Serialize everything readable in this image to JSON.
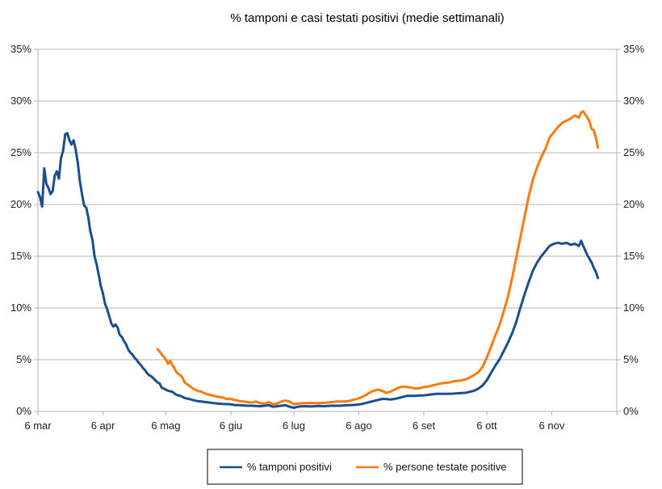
{
  "chart_data": {
    "type": "line",
    "title": "% tamponi e casi testati positivi (medie settimanali)",
    "xlabel": "",
    "ylabel": "",
    "x_unit": "days since 6 mar",
    "x_ticks": [
      {
        "label": "6 mar",
        "x": 0
      },
      {
        "label": "6 apr",
        "x": 31
      },
      {
        "label": "6 mag",
        "x": 61
      },
      {
        "label": "6 giu",
        "x": 92
      },
      {
        "label": "6 lug",
        "x": 122
      },
      {
        "label": "6 ago",
        "x": 153
      },
      {
        "label": "6 set",
        "x": 184
      },
      {
        "label": "6 ott",
        "x": 214
      },
      {
        "label": "6 nov",
        "x": 245
      }
    ],
    "xlim": [
      0,
      276
    ],
    "ylim": [
      0,
      35
    ],
    "y_ticks": [
      0,
      5,
      10,
      15,
      20,
      25,
      30,
      35
    ],
    "y_tick_labels": [
      "0%",
      "5%",
      "10%",
      "15%",
      "20%",
      "25%",
      "30%",
      "35%"
    ],
    "grid": "horizontal",
    "legend_position": "bottom",
    "series": [
      {
        "name": "% tamponi positivi",
        "color": "#1a4f8b",
        "points": [
          [
            0,
            21.2
          ],
          [
            1,
            20.7
          ],
          [
            2,
            19.8
          ],
          [
            3,
            23.5
          ],
          [
            4,
            22.0
          ],
          [
            5,
            21.6
          ],
          [
            6,
            21.0
          ],
          [
            7,
            21.3
          ],
          [
            8,
            22.8
          ],
          [
            9,
            23.2
          ],
          [
            10,
            22.5
          ],
          [
            11,
            24.5
          ],
          [
            12,
            25.2
          ],
          [
            13,
            26.8
          ],
          [
            14,
            26.9
          ],
          [
            15,
            26.2
          ],
          [
            16,
            25.8
          ],
          [
            17,
            26.2
          ],
          [
            18,
            25.3
          ],
          [
            19,
            24.0
          ],
          [
            20,
            22.2
          ],
          [
            21,
            21.0
          ],
          [
            22,
            19.9
          ],
          [
            23,
            19.7
          ],
          [
            24,
            18.8
          ],
          [
            25,
            17.4
          ],
          [
            26,
            16.6
          ],
          [
            27,
            15.0
          ],
          [
            28,
            14.2
          ],
          [
            29,
            13.2
          ],
          [
            30,
            12.1
          ],
          [
            31,
            11.4
          ],
          [
            32,
            10.4
          ],
          [
            33,
            9.9
          ],
          [
            34,
            9.2
          ],
          [
            35,
            8.5
          ],
          [
            36,
            8.2
          ],
          [
            37,
            8.4
          ],
          [
            38,
            8.1
          ],
          [
            39,
            7.4
          ],
          [
            40,
            7.2
          ],
          [
            41,
            6.8
          ],
          [
            42,
            6.5
          ],
          [
            43,
            6.0
          ],
          [
            44,
            5.7
          ],
          [
            45,
            5.5
          ],
          [
            46,
            5.2
          ],
          [
            47,
            5.0
          ],
          [
            48,
            4.7
          ],
          [
            49,
            4.5
          ],
          [
            50,
            4.2
          ],
          [
            51,
            4.0
          ],
          [
            52,
            3.7
          ],
          [
            53,
            3.5
          ],
          [
            54,
            3.4
          ],
          [
            55,
            3.2
          ],
          [
            56,
            3.0
          ],
          [
            57,
            2.8
          ],
          [
            58,
            2.7
          ],
          [
            59,
            2.3
          ],
          [
            60,
            2.2
          ],
          [
            62,
            2.0
          ],
          [
            64,
            1.9
          ],
          [
            66,
            1.6
          ],
          [
            68,
            1.5
          ],
          [
            70,
            1.3
          ],
          [
            72,
            1.2
          ],
          [
            74,
            1.1
          ],
          [
            76,
            1.0
          ],
          [
            78,
            0.95
          ],
          [
            80,
            0.9
          ],
          [
            82,
            0.85
          ],
          [
            84,
            0.8
          ],
          [
            86,
            0.75
          ],
          [
            88,
            0.72
          ],
          [
            90,
            0.7
          ],
          [
            92,
            0.68
          ],
          [
            94,
            0.62
          ],
          [
            96,
            0.6
          ],
          [
            98,
            0.58
          ],
          [
            100,
            0.55
          ],
          [
            102,
            0.55
          ],
          [
            104,
            0.52
          ],
          [
            106,
            0.5
          ],
          [
            108,
            0.55
          ],
          [
            110,
            0.6
          ],
          [
            112,
            0.45
          ],
          [
            114,
            0.5
          ],
          [
            116,
            0.55
          ],
          [
            118,
            0.6
          ],
          [
            120,
            0.45
          ],
          [
            122,
            0.35
          ],
          [
            124,
            0.45
          ],
          [
            126,
            0.5
          ],
          [
            128,
            0.5
          ],
          [
            130,
            0.48
          ],
          [
            132,
            0.5
          ],
          [
            134,
            0.52
          ],
          [
            136,
            0.5
          ],
          [
            138,
            0.52
          ],
          [
            140,
            0.55
          ],
          [
            142,
            0.55
          ],
          [
            144,
            0.55
          ],
          [
            146,
            0.58
          ],
          [
            148,
            0.6
          ],
          [
            150,
            0.62
          ],
          [
            152,
            0.65
          ],
          [
            154,
            0.7
          ],
          [
            156,
            0.8
          ],
          [
            158,
            0.9
          ],
          [
            160,
            1.0
          ],
          [
            162,
            1.1
          ],
          [
            164,
            1.2
          ],
          [
            166,
            1.2
          ],
          [
            168,
            1.15
          ],
          [
            170,
            1.2
          ],
          [
            172,
            1.3
          ],
          [
            174,
            1.4
          ],
          [
            176,
            1.5
          ],
          [
            178,
            1.5
          ],
          [
            180,
            1.5
          ],
          [
            182,
            1.55
          ],
          [
            184,
            1.55
          ],
          [
            186,
            1.6
          ],
          [
            188,
            1.65
          ],
          [
            190,
            1.7
          ],
          [
            192,
            1.7
          ],
          [
            194,
            1.7
          ],
          [
            196,
            1.7
          ],
          [
            198,
            1.72
          ],
          [
            200,
            1.75
          ],
          [
            202,
            1.78
          ],
          [
            204,
            1.8
          ],
          [
            206,
            1.9
          ],
          [
            208,
            2.0
          ],
          [
            210,
            2.2
          ],
          [
            212,
            2.5
          ],
          [
            214,
            3.0
          ],
          [
            216,
            3.7
          ],
          [
            218,
            4.4
          ],
          [
            220,
            5.0
          ],
          [
            222,
            5.8
          ],
          [
            224,
            6.6
          ],
          [
            226,
            7.5
          ],
          [
            228,
            8.6
          ],
          [
            230,
            10.0
          ],
          [
            232,
            11.3
          ],
          [
            234,
            12.5
          ],
          [
            236,
            13.6
          ],
          [
            238,
            14.4
          ],
          [
            240,
            15.0
          ],
          [
            242,
            15.5
          ],
          [
            244,
            16.0
          ],
          [
            246,
            16.2
          ],
          [
            248,
            16.3
          ],
          [
            250,
            16.2
          ],
          [
            252,
            16.3
          ],
          [
            254,
            16.1
          ],
          [
            256,
            16.2
          ],
          [
            258,
            16.0
          ],
          [
            259,
            16.5
          ],
          [
            260,
            16.0
          ],
          [
            262,
            15.1
          ],
          [
            264,
            14.4
          ],
          [
            265,
            13.9
          ],
          [
            266,
            13.5
          ],
          [
            267,
            12.9
          ]
        ]
      },
      {
        "name": "% persone testate positive",
        "color": "#ff7a0d",
        "points": [
          [
            57,
            6.0
          ],
          [
            58,
            5.8
          ],
          [
            59,
            5.5
          ],
          [
            60,
            5.3
          ],
          [
            61,
            5.0
          ],
          [
            62,
            4.6
          ],
          [
            63,
            4.9
          ],
          [
            64,
            4.5
          ],
          [
            65,
            4.2
          ],
          [
            66,
            3.8
          ],
          [
            67,
            3.6
          ],
          [
            68,
            3.5
          ],
          [
            69,
            3.2
          ],
          [
            70,
            2.8
          ],
          [
            72,
            2.5
          ],
          [
            74,
            2.2
          ],
          [
            76,
            2.0
          ],
          [
            78,
            1.9
          ],
          [
            80,
            1.7
          ],
          [
            82,
            1.6
          ],
          [
            84,
            1.5
          ],
          [
            86,
            1.4
          ],
          [
            88,
            1.35
          ],
          [
            90,
            1.2
          ],
          [
            92,
            1.2
          ],
          [
            94,
            1.1
          ],
          [
            96,
            1.0
          ],
          [
            98,
            0.95
          ],
          [
            100,
            0.9
          ],
          [
            102,
            0.85
          ],
          [
            104,
            0.95
          ],
          [
            106,
            0.8
          ],
          [
            108,
            0.75
          ],
          [
            110,
            0.9
          ],
          [
            112,
            0.7
          ],
          [
            114,
            0.75
          ],
          [
            116,
            0.95
          ],
          [
            118,
            1.05
          ],
          [
            120,
            0.95
          ],
          [
            122,
            0.7
          ],
          [
            124,
            0.75
          ],
          [
            126,
            0.8
          ],
          [
            128,
            0.8
          ],
          [
            130,
            0.82
          ],
          [
            132,
            0.8
          ],
          [
            134,
            0.8
          ],
          [
            136,
            0.82
          ],
          [
            138,
            0.85
          ],
          [
            140,
            0.9
          ],
          [
            142,
            0.95
          ],
          [
            144,
            0.95
          ],
          [
            146,
            0.95
          ],
          [
            148,
            1.0
          ],
          [
            150,
            1.1
          ],
          [
            152,
            1.2
          ],
          [
            154,
            1.35
          ],
          [
            156,
            1.55
          ],
          [
            158,
            1.8
          ],
          [
            160,
            2.0
          ],
          [
            162,
            2.1
          ],
          [
            164,
            2.0
          ],
          [
            166,
            1.8
          ],
          [
            168,
            1.9
          ],
          [
            170,
            2.1
          ],
          [
            172,
            2.3
          ],
          [
            174,
            2.4
          ],
          [
            176,
            2.35
          ],
          [
            178,
            2.3
          ],
          [
            180,
            2.2
          ],
          [
            182,
            2.25
          ],
          [
            184,
            2.35
          ],
          [
            186,
            2.4
          ],
          [
            188,
            2.5
          ],
          [
            190,
            2.6
          ],
          [
            192,
            2.7
          ],
          [
            194,
            2.75
          ],
          [
            196,
            2.8
          ],
          [
            198,
            2.9
          ],
          [
            200,
            2.95
          ],
          [
            202,
            3.0
          ],
          [
            204,
            3.1
          ],
          [
            206,
            3.3
          ],
          [
            208,
            3.5
          ],
          [
            210,
            3.8
          ],
          [
            212,
            4.3
          ],
          [
            214,
            5.2
          ],
          [
            216,
            6.2
          ],
          [
            218,
            7.3
          ],
          [
            220,
            8.3
          ],
          [
            222,
            9.6
          ],
          [
            224,
            11.0
          ],
          [
            226,
            12.8
          ],
          [
            228,
            14.8
          ],
          [
            230,
            16.8
          ],
          [
            232,
            18.8
          ],
          [
            234,
            20.8
          ],
          [
            236,
            22.4
          ],
          [
            238,
            23.6
          ],
          [
            240,
            24.6
          ],
          [
            242,
            25.4
          ],
          [
            244,
            26.5
          ],
          [
            246,
            27.0
          ],
          [
            248,
            27.5
          ],
          [
            250,
            27.9
          ],
          [
            252,
            28.1
          ],
          [
            254,
            28.3
          ],
          [
            256,
            28.6
          ],
          [
            258,
            28.4
          ],
          [
            259,
            28.9
          ],
          [
            260,
            29.0
          ],
          [
            262,
            28.4
          ],
          [
            263,
            28.0
          ],
          [
            264,
            27.3
          ],
          [
            265,
            27.2
          ],
          [
            266,
            26.5
          ],
          [
            267,
            25.5
          ]
        ]
      }
    ]
  }
}
